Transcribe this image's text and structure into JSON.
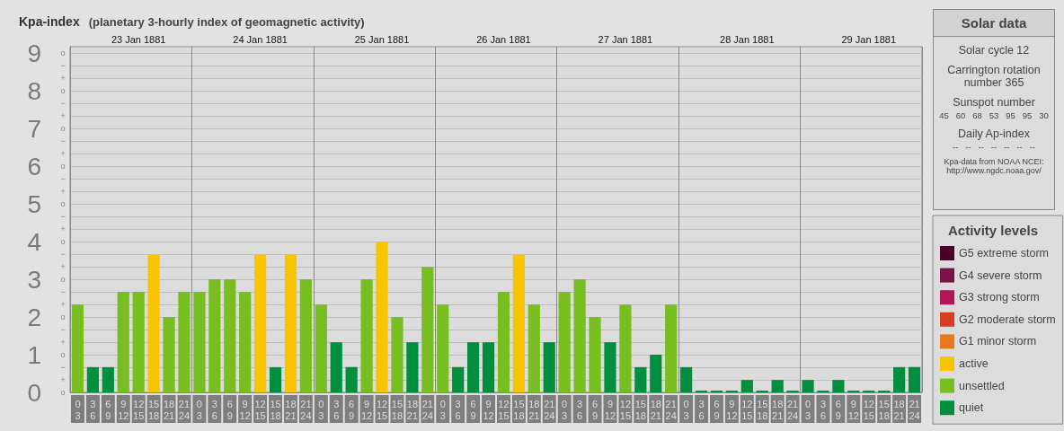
{
  "chart_data": [
    {
      "type": "bar",
      "title": "Kpa-index",
      "subtitle": "(planetary 3-hourly index of geomagnetic activity)",
      "stacked": true,
      "grid": "y",
      "legend": "right",
      "legend_title": "Activity levels",
      "annotations": [
        "23 Jan 1881",
        "24 Jan 1881",
        "25 Jan 1881",
        "26 Jan 1881",
        "27 Jan 1881",
        "28 Jan 1881",
        "29 Jan 1881",
        "o",
        "+",
        "−",
        "o",
        "+",
        "−",
        "o",
        "+",
        "−",
        "o",
        "+",
        "−",
        "o",
        "+",
        "−",
        "o",
        "+",
        "−",
        "o",
        "+",
        "−",
        "o",
        "+",
        "−",
        "o",
        "+",
        "−",
        "o"
      ],
      "categories": [
        "0\n3",
        "3\n6",
        "6\n9",
        "9\n12",
        "12\n15",
        "15\n18",
        "18\n21",
        "21\n24",
        "0\n3",
        "3\n6",
        "6\n9",
        "9\n12",
        "12\n15",
        "15\n18",
        "18\n21",
        "21\n24",
        "0\n3",
        "3\n6",
        "6\n9",
        "9\n12",
        "12\n15",
        "15\n18",
        "18\n21",
        "21\n24",
        "0\n3",
        "3\n6",
        "6\n9",
        "9\n12",
        "12\n15",
        "15\n18",
        "18\n21",
        "21\n24",
        "0\n3",
        "3\n6",
        "6\n9",
        "9\n12",
        "12\n15",
        "15\n18",
        "18\n21",
        "21\n24",
        "0\n3",
        "3\n6",
        "6\n9",
        "9\n12",
        "12\n15",
        "15\n18",
        "18\n21",
        "21\n24",
        "0\n3",
        "3\n6",
        "6\n9",
        "9\n12",
        "12\n15",
        "15\n18",
        "18\n21",
        "21\n24"
      ],
      "ylim": [
        0,
        9.17
      ],
      "yticks": [
        0,
        1,
        2,
        3,
        4,
        5,
        6,
        7,
        8,
        9
      ],
      "series": [
        {
          "name": "G5 extreme storm",
          "color": "#4c0028",
          "values": [
            null,
            null,
            null,
            null,
            null,
            null,
            null,
            null,
            null,
            null,
            null,
            null,
            null,
            null,
            null,
            null,
            null,
            null,
            null,
            null,
            null,
            null,
            null,
            null,
            null,
            null,
            null,
            null,
            null,
            null,
            null,
            null,
            null,
            null,
            null,
            null,
            null,
            null,
            null,
            null,
            null,
            null,
            null,
            null,
            null,
            null,
            null,
            null,
            null,
            null,
            null,
            null,
            null,
            null,
            null,
            null
          ]
        },
        {
          "name": "G4 severe storm",
          "color": "#7a1446",
          "values": [
            null,
            null,
            null,
            null,
            null,
            null,
            null,
            null,
            null,
            null,
            null,
            null,
            null,
            null,
            null,
            null,
            null,
            null,
            null,
            null,
            null,
            null,
            null,
            null,
            null,
            null,
            null,
            null,
            null,
            null,
            null,
            null,
            null,
            null,
            null,
            null,
            null,
            null,
            null,
            null,
            null,
            null,
            null,
            null,
            null,
            null,
            null,
            null,
            null,
            null,
            null,
            null,
            null,
            null,
            null,
            null
          ]
        },
        {
          "name": "G3 strong storm",
          "color": "#b4145a",
          "values": [
            null,
            null,
            null,
            null,
            null,
            null,
            null,
            null,
            null,
            null,
            null,
            null,
            null,
            null,
            null,
            null,
            null,
            null,
            null,
            null,
            null,
            null,
            null,
            null,
            null,
            null,
            null,
            null,
            null,
            null,
            null,
            null,
            null,
            null,
            null,
            null,
            null,
            null,
            null,
            null,
            null,
            null,
            null,
            null,
            null,
            null,
            null,
            null,
            null,
            null,
            null,
            null,
            null,
            null,
            null,
            null
          ]
        },
        {
          "name": "G2 moderate storm",
          "color": "#d83c1e",
          "values": [
            null,
            null,
            null,
            null,
            null,
            null,
            null,
            null,
            null,
            null,
            null,
            null,
            null,
            null,
            null,
            null,
            null,
            null,
            null,
            null,
            null,
            null,
            null,
            null,
            null,
            null,
            null,
            null,
            null,
            null,
            null,
            null,
            null,
            null,
            null,
            null,
            null,
            null,
            null,
            null,
            null,
            null,
            null,
            null,
            null,
            null,
            null,
            null,
            null,
            null,
            null,
            null,
            null,
            null,
            null,
            null
          ]
        },
        {
          "name": "G1 minor storm",
          "color": "#e8781a",
          "values": [
            null,
            null,
            null,
            null,
            null,
            null,
            null,
            null,
            null,
            null,
            null,
            null,
            null,
            null,
            null,
            null,
            null,
            null,
            null,
            null,
            null,
            null,
            null,
            null,
            null,
            null,
            null,
            null,
            null,
            null,
            null,
            null,
            null,
            null,
            null,
            null,
            null,
            null,
            null,
            null,
            null,
            null,
            null,
            null,
            null,
            null,
            null,
            null,
            null,
            null,
            null,
            null,
            null,
            null,
            null,
            null
          ]
        },
        {
          "name": "active",
          "color": "#f8c400",
          "values": [
            null,
            null,
            null,
            null,
            null,
            3.67,
            null,
            null,
            null,
            null,
            null,
            null,
            3.67,
            null,
            3.67,
            null,
            null,
            null,
            null,
            null,
            4,
            null,
            null,
            null,
            null,
            null,
            null,
            null,
            null,
            3.67,
            null,
            null,
            null,
            null,
            null,
            null,
            null,
            null,
            null,
            null,
            null,
            null,
            null,
            null,
            null,
            null,
            null,
            null,
            null,
            null,
            null,
            null,
            null,
            null,
            null,
            null
          ]
        },
        {
          "name": "unsettled",
          "color": "#78be20",
          "values": [
            2.33,
            null,
            null,
            2.67,
            2.67,
            null,
            2,
            2.67,
            2.67,
            3,
            3,
            2.67,
            null,
            null,
            null,
            3,
            2.33,
            null,
            null,
            3,
            null,
            2,
            null,
            3.33,
            2.33,
            null,
            null,
            null,
            2.67,
            null,
            2.33,
            null,
            2.67,
            3,
            2,
            null,
            2.33,
            null,
            null,
            2.33,
            null,
            null,
            null,
            null,
            null,
            null,
            null,
            null,
            null,
            null,
            null,
            null,
            null,
            null,
            null,
            null
          ]
        },
        {
          "name": "quiet",
          "color": "#008f3e",
          "values": [
            null,
            0.67,
            0.67,
            null,
            null,
            null,
            null,
            null,
            null,
            null,
            null,
            null,
            null,
            0.67,
            null,
            null,
            null,
            1.33,
            0.67,
            null,
            null,
            null,
            1.33,
            null,
            null,
            0.67,
            1.33,
            1.33,
            null,
            null,
            null,
            1.33,
            null,
            null,
            null,
            1.33,
            null,
            0.67,
            1,
            null,
            0.67,
            0,
            0,
            0,
            0.33,
            0,
            0.33,
            0,
            0.33,
            0,
            0.33,
            0,
            0,
            0,
            0.67,
            0.67
          ]
        }
      ]
    },
    {
      "type": "other",
      "title": "Solar data",
      "annotations": [
        "Solar cycle 12",
        "Carrington rotation number 365",
        "Sunspot number",
        "45   60   68   53   95   95   30",
        "Daily Ap-index",
        "--   --   --   --   --   --   --",
        "Kpa-data from NOAA NCEI: http://www.ngdc.noaa.gov/"
      ]
    }
  ]
}
